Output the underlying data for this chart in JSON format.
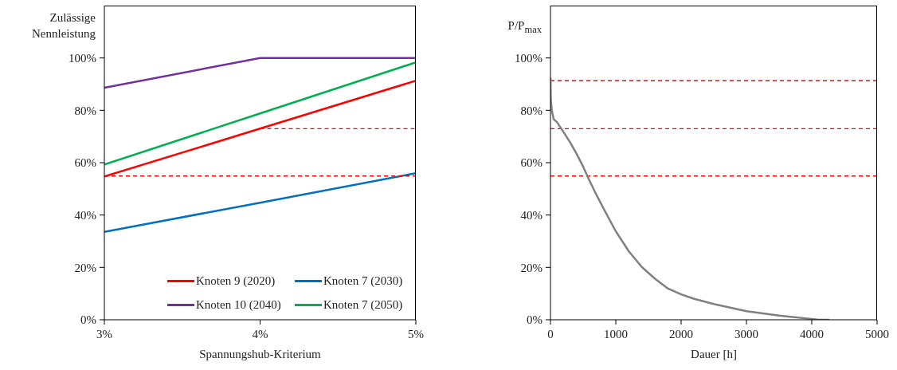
{
  "chart_data": [
    {
      "type": "line",
      "ylabel": "Zulässige Nennleistung",
      "xlabel": "Spannungshub-Kriterium",
      "x": [
        3,
        4,
        5
      ],
      "xlim": [
        3,
        5
      ],
      "xticks": [
        {
          "value": 3,
          "label": "3%"
        },
        {
          "value": 4,
          "label": "4%"
        },
        {
          "value": 5,
          "label": "5%"
        }
      ],
      "ylim": [
        0,
        120
      ],
      "yticks": [
        {
          "value": 0,
          "label": "0%"
        },
        {
          "value": 20,
          "label": "20%"
        },
        {
          "value": 40,
          "label": "40%"
        },
        {
          "value": 60,
          "label": "60%"
        },
        {
          "value": 80,
          "label": "80%"
        },
        {
          "value": 100,
          "label": "100%"
        }
      ],
      "legend": "bottom right",
      "grid": false,
      "marker": "none",
      "series": [
        {
          "name": "Knoten 9 (2020)",
          "color": "#ff0000",
          "values": [
            54.7,
            73,
            91.3
          ]
        },
        {
          "name": "Knoten 7 (2030)",
          "color": "#0070c0",
          "values": [
            33.6,
            44.7,
            56
          ]
        },
        {
          "name": "Knoten 10 (2040)",
          "color": "#7030a0",
          "values": [
            88.6,
            100,
            100
          ]
        },
        {
          "name": "Knoten 7 (2050)",
          "color": "#00b050",
          "values": [
            59.3,
            78.8,
            98.3
          ]
        },
        {
          "color": "#ff0000",
          "line_style": "dashed",
          "x": [
            3,
            5
          ],
          "values": [
            54.9,
            54.9
          ]
        },
        {
          "color": "#ff0000",
          "line_style": "dashed",
          "x": [
            4,
            5
          ],
          "values": [
            73,
            73
          ]
        }
      ]
    },
    {
      "type": "line",
      "ylabel": "P/P$_{max}$",
      "xlabel": "Dauer [h]",
      "xlim": [
        0,
        5000
      ],
      "xticks": [
        0,
        1000,
        2000,
        3000,
        4000,
        5000
      ],
      "ylim": [
        0,
        120
      ],
      "yticks": [
        {
          "value": 0,
          "label": "0%"
        },
        {
          "value": 20,
          "label": "20%"
        },
        {
          "value": 40,
          "label": "40%"
        },
        {
          "value": 60,
          "label": "60%"
        },
        {
          "value": 80,
          "label": "80%"
        },
        {
          "value": 100,
          "label": "100%"
        }
      ],
      "grid": false,
      "legend": false,
      "marker": "none",
      "x": [
        0,
        5,
        20,
        50,
        100,
        200,
        300,
        400,
        500,
        600,
        700,
        800,
        1000,
        1200,
        1400,
        1600,
        1800,
        2000,
        2200,
        2500,
        3000,
        3500,
        4000,
        4100,
        4270
      ],
      "series": [
        {
          "color": "#808080",
          "values": [
            92.5,
            84.3,
            80,
            76.5,
            75.5,
            71.7,
            67.8,
            63.4,
            58.5,
            53,
            47.9,
            43.1,
            33.8,
            26.1,
            20.1,
            15.7,
            11.9,
            9.7,
            8,
            6,
            3.3,
            1.6,
            0.3,
            0,
            0
          ]
        }
      ],
      "ref_lines": [
        {
          "axis": "y",
          "value": 91.3,
          "color": "#ff0000",
          "line_style": "dashed"
        },
        {
          "axis": "y",
          "value": 73,
          "color": "#ff0000",
          "line_style": "dashed"
        },
        {
          "axis": "y",
          "value": 54.9,
          "color": "#ff0000",
          "line_style": "dashed"
        }
      ]
    }
  ]
}
